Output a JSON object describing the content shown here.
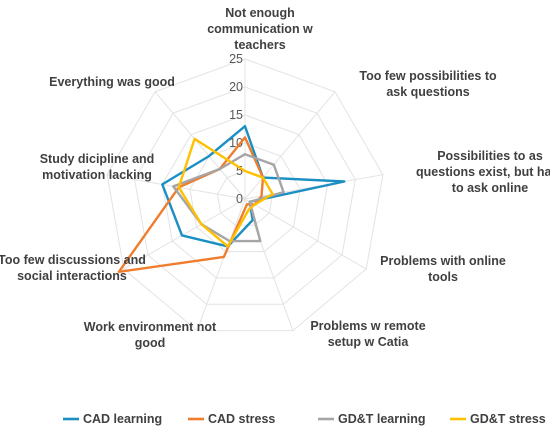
{
  "chart_data": {
    "type": "radar",
    "categories": [
      "Not enough communication w teachers",
      "Too few possibilities to ask questions",
      "Possibilities to as questions exist, but hard to ask online",
      "Problems with online tools",
      "Problems w remote setup w Catia",
      "Work environment not good",
      "Too few discussions and social interactions",
      "Study dicipline and motivation lacking",
      "Everything was good"
    ],
    "category_lines": [
      [
        "Not enough",
        "communication w",
        "teachers"
      ],
      [
        "Too few possibilities to",
        "ask questions"
      ],
      [
        "Possibilities to as",
        "questions exist, but hard",
        "to ask online"
      ],
      [
        "Problems with online",
        "tools"
      ],
      [
        "Problems w remote",
        "setup w Catia"
      ],
      [
        "Work environment not",
        "good"
      ],
      [
        "Too few discussions and",
        "social interactions"
      ],
      [
        "Study dicipline and",
        "motivation lacking"
      ],
      [
        "Everything was good"
      ]
    ],
    "rlim": [
      0,
      25
    ],
    "ticks": [
      "0",
      "5",
      "10",
      "15",
      "20",
      "25"
    ],
    "series": [
      {
        "name": "CAD learning",
        "color": "#1b8fc4",
        "values": [
          13,
          5,
          18,
          1,
          4,
          9,
          13,
          15,
          10
        ]
      },
      {
        "name": "CAD stress",
        "color": "#f07c2d",
        "values": [
          11,
          5,
          3,
          2,
          1,
          11,
          26,
          12,
          7
        ]
      },
      {
        "name": "GD&T learning",
        "color": "#a5a5a5",
        "values": [
          8,
          8,
          7,
          1,
          8,
          8,
          9,
          13,
          7
        ]
      },
      {
        "name": "GD&T stress",
        "color": "#ffc000",
        "values": [
          5,
          5,
          5,
          2,
          2,
          9,
          9,
          12,
          14
        ]
      }
    ],
    "legend_position": "bottom",
    "grid": true
  }
}
